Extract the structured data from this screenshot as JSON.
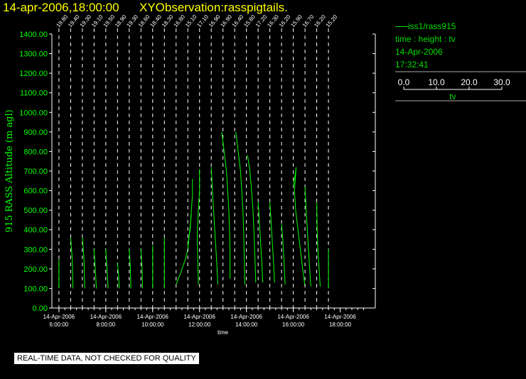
{
  "header": {
    "datetime": "14-apr-2006,18:00:00",
    "title": "XYObservation:rasspigtails."
  },
  "legend": {
    "series": "iss1/rass915",
    "quantity": "time : height : tv",
    "date": "14-Apr-2006",
    "time": "17:32:41",
    "scale_ticks": [
      "0.0",
      "10.0",
      "20.0",
      "30.0"
    ],
    "scale_label": "tv"
  },
  "footer": {
    "warning": "REAL-TIME DATA, NOT CHECKED FOR QUALITY"
  },
  "chart_data": {
    "type": "line",
    "xlabel": "time",
    "ylabel": "915 RASS Altitude (m agl)",
    "xlim": [
      4.7,
      18.5
    ],
    "ylim": [
      0,
      1400
    ],
    "grid": false,
    "color": "#00ff00",
    "y_ticks": [
      "0.00",
      "100.00",
      "200.00",
      "300.00",
      "400.00",
      "500.00",
      "600.00",
      "700.00",
      "800.00",
      "900.00",
      "1000.00",
      "1100.00",
      "1200.00",
      "1300.00",
      "1400.00"
    ],
    "x_ticks": [
      {
        "x": 5,
        "date": "14-Apr-2006",
        "time": "6:00:00"
      },
      {
        "x": 7,
        "date": "14-Apr-2006",
        "time": "8:00:00"
      },
      {
        "x": 9,
        "date": "14-Apr-2006",
        "time": "10:00:00"
      },
      {
        "x": 11,
        "date": "14-Apr-2006",
        "time": "12:00:00"
      },
      {
        "x": 13,
        "date": "14-Apr-2006",
        "time": "14:00:00"
      },
      {
        "x": 15,
        "date": "14-Apr-2006",
        "time": "16:00:00"
      },
      {
        "x": 17,
        "date": "14-Apr-2006",
        "time": "18:00:00"
      }
    ],
    "profiles": [
      {
        "label": "19.80",
        "t": 5.0,
        "points": [
          [
            5.0,
            100
          ],
          [
            5.0,
            250
          ]
        ]
      },
      {
        "label": "19.40",
        "t": 5.5,
        "points": [
          [
            5.5,
            360
          ],
          [
            5.57,
            250
          ],
          [
            5.6,
            100
          ]
        ]
      },
      {
        "label": "19.30",
        "t": 6.0,
        "points": [
          [
            6.0,
            360
          ],
          [
            6.07,
            250
          ],
          [
            6.1,
            100
          ]
        ]
      },
      {
        "label": "19.10",
        "t": 6.5,
        "points": [
          [
            6.5,
            300
          ],
          [
            6.55,
            200
          ],
          [
            6.6,
            100
          ]
        ]
      },
      {
        "label": "19.50",
        "t": 7.0,
        "points": [
          [
            7.0,
            300
          ],
          [
            7.05,
            200
          ],
          [
            7.1,
            100
          ]
        ]
      },
      {
        "label": "18.90",
        "t": 7.5,
        "points": [
          [
            7.5,
            230
          ],
          [
            7.55,
            160
          ],
          [
            7.57,
            100
          ]
        ]
      },
      {
        "label": "19.30",
        "t": 8.0,
        "points": [
          [
            8.0,
            300
          ],
          [
            8.05,
            200
          ],
          [
            8.07,
            100
          ]
        ]
      },
      {
        "label": "18.60",
        "t": 8.5,
        "points": [
          [
            8.5,
            300
          ],
          [
            8.55,
            200
          ],
          [
            8.57,
            100
          ]
        ]
      },
      {
        "label": "18.40",
        "t": 9.0,
        "points": [
          [
            9.0,
            320
          ],
          [
            9.0,
            200
          ],
          [
            9.0,
            100
          ]
        ]
      },
      {
        "label": "18.30",
        "t": 9.5,
        "points": [
          [
            9.5,
            360
          ],
          [
            9.5,
            250
          ],
          [
            9.5,
            100
          ]
        ]
      },
      {
        "label": "16.80",
        "t": 10.0,
        "points": [
          [
            10.0,
            120
          ],
          [
            10.2,
            180
          ],
          [
            10.4,
            250
          ],
          [
            10.5,
            300
          ],
          [
            10.6,
            420
          ],
          [
            10.65,
            480
          ]
        ]
      },
      {
        "label": "15.10",
        "t": 10.5,
        "points": [
          [
            10.5,
            320
          ],
          [
            10.6,
            400
          ],
          [
            10.65,
            500
          ],
          [
            10.7,
            580
          ],
          [
            10.7,
            660
          ]
        ]
      },
      {
        "label": "17.10",
        "t": 11.0,
        "points": [
          [
            11.0,
            710
          ],
          [
            11.0,
            600
          ],
          [
            10.95,
            500
          ],
          [
            10.9,
            380
          ],
          [
            10.92,
            250
          ],
          [
            10.95,
            120
          ]
        ]
      },
      {
        "label": "16.90",
        "t": 11.5,
        "points": [
          [
            11.5,
            720
          ],
          [
            11.55,
            600
          ],
          [
            11.6,
            500
          ],
          [
            11.65,
            400
          ],
          [
            11.7,
            300
          ],
          [
            11.75,
            200
          ],
          [
            11.78,
            120
          ]
        ]
      },
      {
        "label": "16.90",
        "t": 12.0,
        "points": [
          [
            11.95,
            900
          ],
          [
            12.05,
            800
          ],
          [
            12.15,
            700
          ],
          [
            12.2,
            600
          ],
          [
            12.25,
            500
          ],
          [
            12.28,
            400
          ],
          [
            12.3,
            300
          ],
          [
            12.3,
            150
          ]
        ]
      },
      {
        "label": "16.40",
        "t": 12.5,
        "points": [
          [
            12.55,
            900
          ],
          [
            12.65,
            800
          ],
          [
            12.75,
            700
          ],
          [
            12.8,
            600
          ],
          [
            12.85,
            500
          ],
          [
            12.88,
            400
          ],
          [
            12.9,
            300
          ],
          [
            12.92,
            200
          ],
          [
            12.93,
            120
          ]
        ]
      },
      {
        "label": "15.80",
        "t": 13.0,
        "points": [
          [
            13.05,
            780
          ],
          [
            13.15,
            700
          ],
          [
            13.22,
            600
          ],
          [
            13.28,
            500
          ],
          [
            13.32,
            400
          ],
          [
            13.35,
            300
          ],
          [
            13.38,
            200
          ],
          [
            13.4,
            130
          ]
        ]
      },
      {
        "label": "17.20",
        "t": 13.5,
        "points": [
          [
            13.5,
            540
          ],
          [
            13.55,
            450
          ],
          [
            13.6,
            350
          ],
          [
            13.65,
            250
          ],
          [
            13.7,
            130
          ]
        ]
      },
      {
        "label": "16.30",
        "t": 14.0,
        "points": [
          [
            14.0,
            540
          ],
          [
            14.05,
            450
          ],
          [
            14.1,
            350
          ],
          [
            14.15,
            250
          ],
          [
            14.2,
            130
          ]
        ]
      },
      {
        "label": "16.20",
        "t": 14.5,
        "points": [
          [
            14.5,
            430
          ],
          [
            14.55,
            350
          ],
          [
            14.6,
            250
          ],
          [
            14.65,
            120
          ]
        ]
      },
      {
        "label": "15.90",
        "t": 15.0,
        "points": [
          [
            15.0,
            620
          ],
          [
            15.1,
            700
          ],
          [
            15.12,
            720
          ],
          [
            15.05,
            600
          ],
          [
            15.1,
            500
          ],
          [
            15.2,
            400
          ],
          [
            15.3,
            300
          ],
          [
            15.4,
            200
          ],
          [
            15.5,
            110
          ]
        ]
      },
      {
        "label": "16.70",
        "t": 15.5,
        "points": [
          [
            15.5,
            620
          ],
          [
            15.55,
            500
          ],
          [
            15.6,
            400
          ],
          [
            15.65,
            300
          ],
          [
            15.7,
            200
          ],
          [
            15.75,
            110
          ]
        ]
      },
      {
        "label": "16.20",
        "t": 16.0,
        "points": [
          [
            16.0,
            540
          ],
          [
            16.02,
            400
          ],
          [
            16.05,
            300
          ],
          [
            16.1,
            200
          ],
          [
            16.15,
            110
          ]
        ]
      },
      {
        "label": "15.20",
        "t": 16.5,
        "points": [
          [
            16.5,
            300
          ],
          [
            16.5,
            200
          ],
          [
            16.5,
            100
          ]
        ]
      }
    ]
  }
}
